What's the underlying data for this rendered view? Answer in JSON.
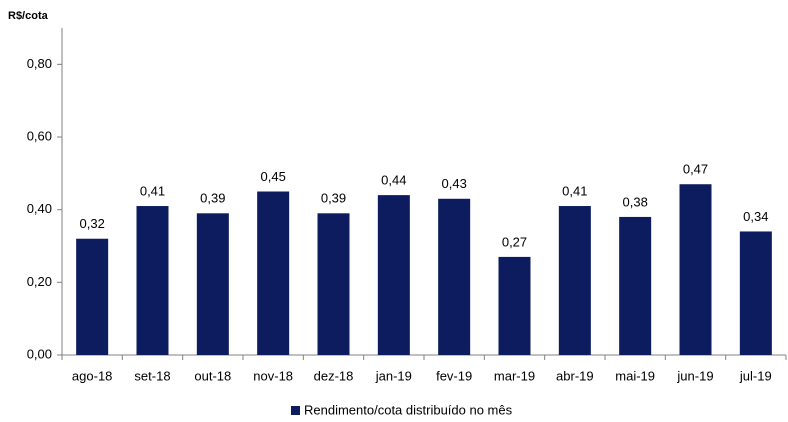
{
  "chart_data": {
    "type": "bar",
    "y_label": "R$/cota",
    "categories": [
      "ago-18",
      "set-18",
      "out-18",
      "nov-18",
      "dez-18",
      "jan-19",
      "fev-19",
      "mar-19",
      "abr-19",
      "mai-19",
      "jun-19",
      "jul-19"
    ],
    "series": [
      {
        "name": "Rendimento/cota distribuído no mês",
        "color": "#0c1c5e",
        "values": [
          0.32,
          0.41,
          0.39,
          0.45,
          0.39,
          0.44,
          0.43,
          0.27,
          0.41,
          0.38,
          0.47,
          0.34
        ],
        "value_labels": [
          "0,32",
          "0,41",
          "0,39",
          "0,45",
          "0,39",
          "0,44",
          "0,43",
          "0,27",
          "0,41",
          "0,38",
          "0,47",
          "0,34"
        ]
      }
    ],
    "ylim": [
      0,
      0.9
    ],
    "yticks": [
      {
        "value": 0,
        "label": "0,00"
      },
      {
        "value": 0.2,
        "label": "0,20"
      },
      {
        "value": 0.4,
        "label": "0,40"
      },
      {
        "value": 0.6,
        "label": "0,60"
      },
      {
        "value": 0.8,
        "label": "0,80"
      }
    ],
    "grid": false,
    "legend": "bottom"
  }
}
